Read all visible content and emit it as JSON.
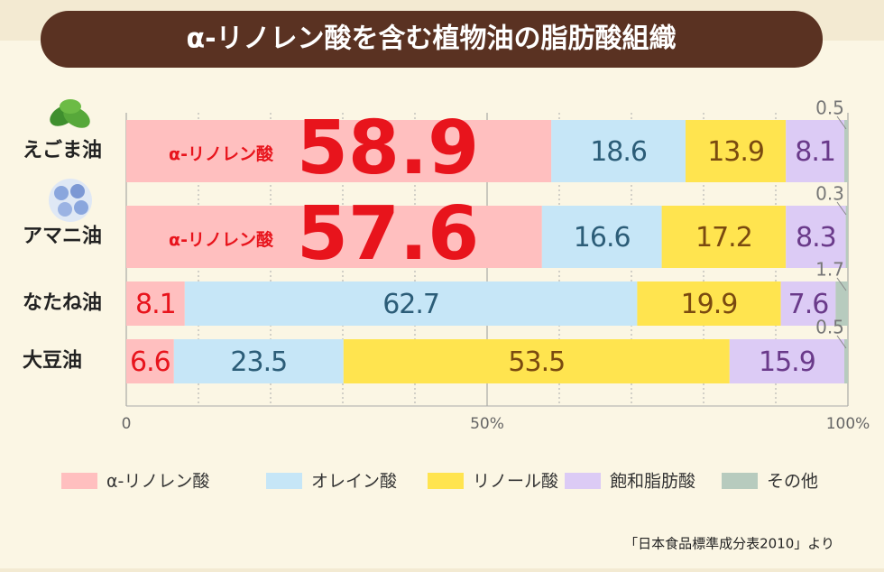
{
  "chart_data": {
    "type": "stacked-barh",
    "title": "α-リノレン酸を含む植物油の脂肪酸組織",
    "categories": [
      "えごま油",
      "アマニ油",
      "なたね油",
      "大豆油"
    ],
    "series": [
      {
        "name": "α-リノレン酸",
        "color": "#ffbfbf",
        "text_color": "#e8141c",
        "values": [
          58.9,
          57.6,
          8.1,
          6.6
        ]
      },
      {
        "name": "オレイン酸",
        "color": "#c6e6f7",
        "text_color": "#2c5d78",
        "values": [
          18.6,
          16.6,
          62.7,
          23.5
        ]
      },
      {
        "name": "リノール酸",
        "color": "#ffe44f",
        "text_color": "#7a4a10",
        "values": [
          13.9,
          17.2,
          19.9,
          53.5
        ]
      },
      {
        "name": "飽和脂肪酸",
        "color": "#dccbf5",
        "text_color": "#6a3a8a",
        "values": [
          8.1,
          8.3,
          7.6,
          15.9
        ]
      },
      {
        "name": "その他",
        "color": "#b7cbbe",
        "text_color": "#777777",
        "values": [
          0.5,
          0.3,
          1.7,
          0.5
        ]
      }
    ],
    "xlim": [
      0,
      100
    ],
    "xticks": [
      0,
      {
        "value": 50,
        "label": "50%"
      },
      {
        "value": 100,
        "label": "100%"
      }
    ],
    "xminor": [
      10,
      20,
      30,
      40,
      60,
      70,
      80,
      90
    ],
    "source": "「日本食品標準成分表2010」より"
  }
}
